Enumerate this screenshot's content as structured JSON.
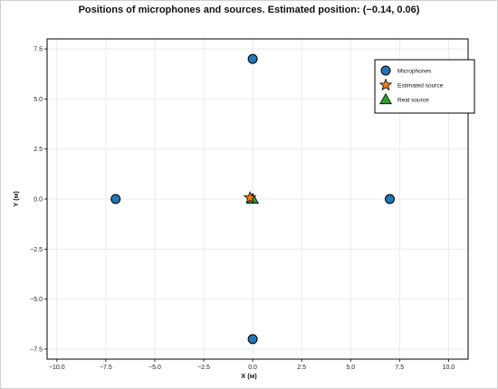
{
  "chart_data": {
    "type": "scatter",
    "title": "Positions of microphones and sources. Estimated position: (−0.14, 0.06)",
    "xlabel": "X (м)",
    "ylabel": "Y (м)",
    "xlim": [
      -10.5,
      11.0
    ],
    "ylim": [
      -8.0,
      8.0
    ],
    "xticks": [
      -10.0,
      -7.5,
      -5.0,
      -2.5,
      0.0,
      2.5,
      5.0,
      7.5,
      10.0
    ],
    "xtick_labels": [
      "−10.0",
      "−7.5",
      "−5.0",
      "−2.5",
      "0.0",
      "2.5",
      "5.0",
      "7.5",
      "10.0"
    ],
    "yticks": [
      7.5,
      5.0,
      2.5,
      0.0,
      -2.5,
      -5.0,
      -7.5
    ],
    "ytick_labels": [
      "7.5",
      "5.0",
      "2.5",
      "0.0",
      "−2.5",
      "−5.0",
      "−7.5"
    ],
    "grid": true,
    "legend_position": "top-right",
    "series": [
      {
        "name": "Microphones",
        "marker": "circle",
        "color": "#1f77b4",
        "points": [
          [
            0,
            7
          ],
          [
            -7,
            0
          ],
          [
            7,
            0
          ],
          [
            0,
            -7
          ]
        ]
      },
      {
        "name": "Estimated source",
        "marker": "star",
        "color": "#ff7f0e",
        "points": [
          [
            -0.14,
            0.06
          ]
        ]
      },
      {
        "name": "Real source",
        "marker": "triangle",
        "color": "#2ca02c",
        "points": [
          [
            0,
            0
          ]
        ]
      }
    ]
  }
}
